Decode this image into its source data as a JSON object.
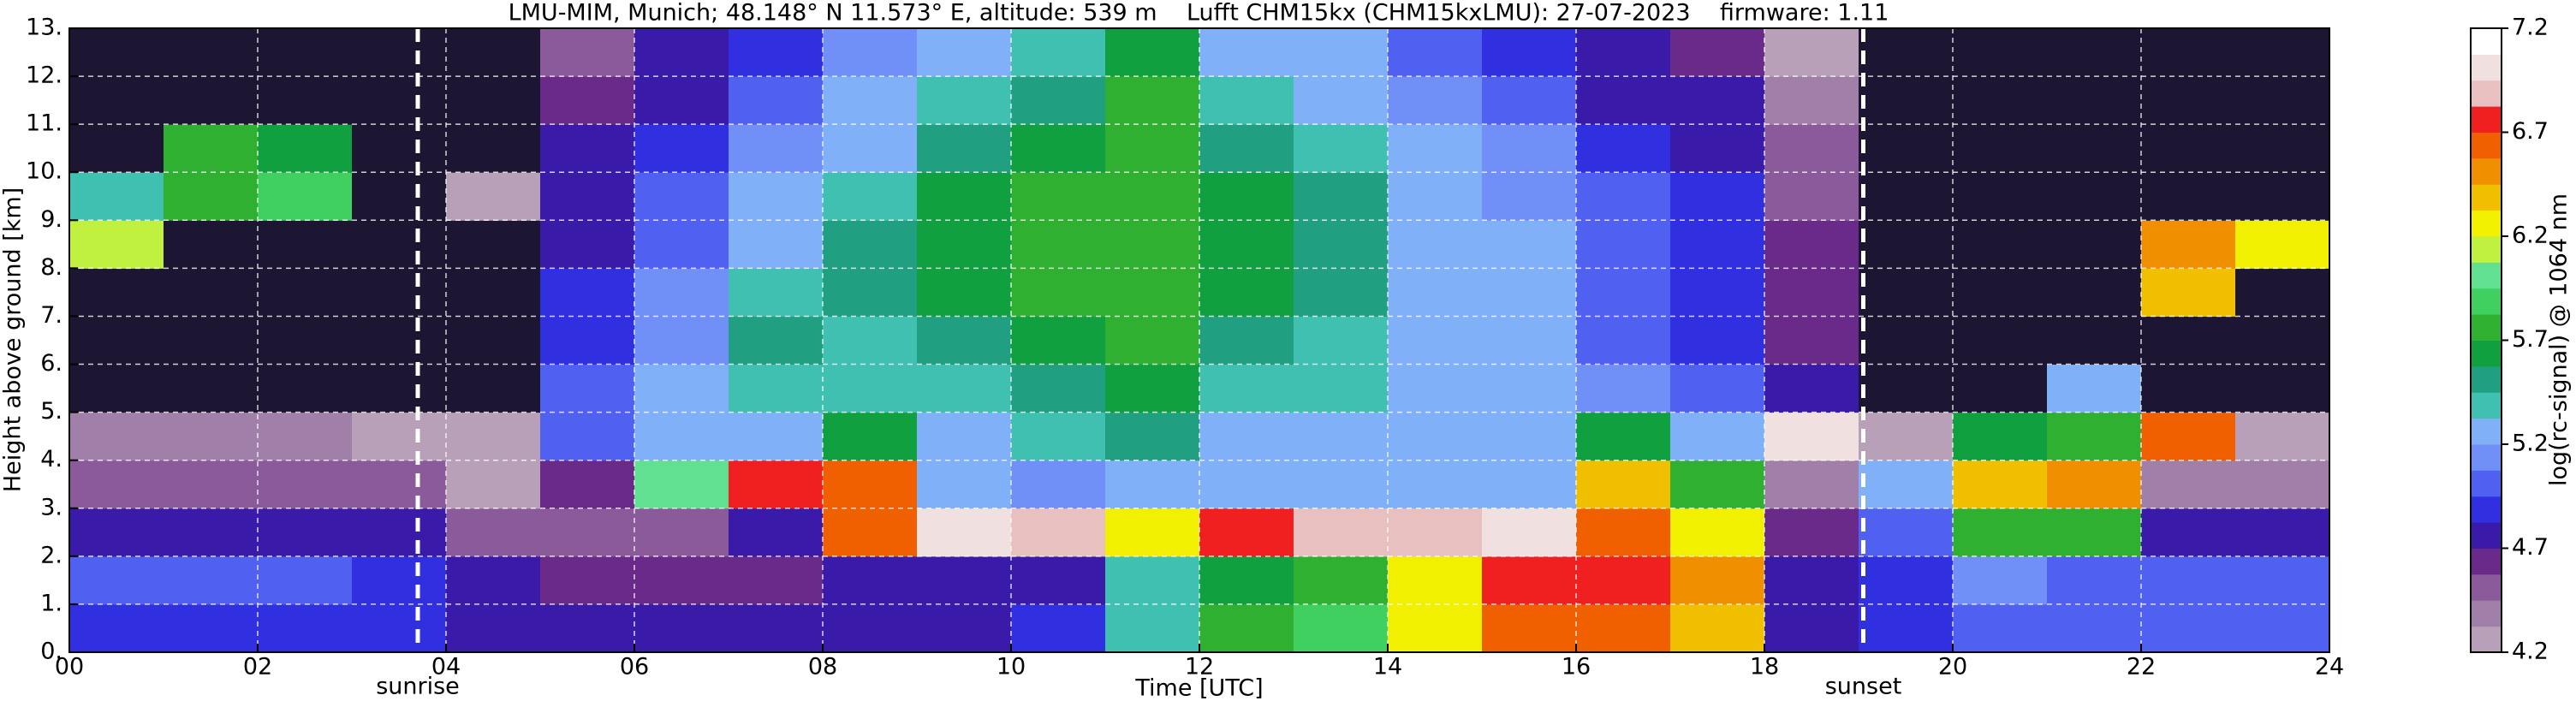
{
  "chart_data": {
    "type": "heatmap",
    "title": "LMU-MIM, Munich; 48.148° N 11.573° E, altitude: 539 m    Lufft CHM15kx (CHM15kxLMU): 27-07-2023    firmware: 1.11",
    "x_label": "Time [UTC]",
    "y_label": "Height above ground [km]",
    "xlim": [
      0,
      24
    ],
    "ylim": [
      0,
      13
    ],
    "xticks": [
      {
        "value": 0,
        "label": "00"
      },
      {
        "value": 2,
        "label": "02"
      },
      {
        "value": 4,
        "label": "04"
      },
      {
        "value": 6,
        "label": "06"
      },
      {
        "value": 8,
        "label": "08"
      },
      {
        "value": 10,
        "label": "10"
      },
      {
        "value": 12,
        "label": "12"
      },
      {
        "value": 14,
        "label": "14"
      },
      {
        "value": 16,
        "label": "16"
      },
      {
        "value": 18,
        "label": "18"
      },
      {
        "value": 20,
        "label": "20"
      },
      {
        "value": 22,
        "label": "22"
      },
      {
        "value": 24,
        "label": "24"
      }
    ],
    "yticks": [
      {
        "value": 0,
        "label": "0."
      },
      {
        "value": 1,
        "label": "1."
      },
      {
        "value": 2,
        "label": "2."
      },
      {
        "value": 3,
        "label": "3."
      },
      {
        "value": 4,
        "label": "4."
      },
      {
        "value": 5,
        "label": "5."
      },
      {
        "value": 6,
        "label": "6."
      },
      {
        "value": 7,
        "label": "7."
      },
      {
        "value": 8,
        "label": "8."
      },
      {
        "value": 9,
        "label": "9."
      },
      {
        "value": 10,
        "label": "10."
      },
      {
        "value": 11,
        "label": "11."
      },
      {
        "value": 12,
        "label": "12."
      },
      {
        "value": 13,
        "label": "13."
      }
    ],
    "grid": true,
    "x": [
      0.5,
      1.5,
      2.5,
      3.5,
      4.5,
      5.5,
      6.5,
      7.5,
      8.5,
      9.5,
      10.5,
      11.5,
      12.5,
      13.5,
      14.5,
      15.5,
      16.5,
      17.5,
      18.5,
      19.5,
      20.5,
      21.5,
      22.5,
      23.5
    ],
    "y": [
      0.5,
      1.5,
      2.5,
      3.5,
      4.5,
      5.5,
      6.5,
      7.5,
      8.5,
      9.5,
      10.5,
      11.5,
      12.5
    ],
    "z": [
      [
        4.9,
        4.9,
        4.9,
        4.9,
        4.8,
        4.8,
        4.8,
        4.7,
        4.8,
        4.8,
        4.9,
        5.4,
        5.8,
        5.9,
        6.2,
        6.6,
        6.6,
        6.4,
        4.8,
        4.9,
        5.0,
        5.0,
        5.0,
        5.0
      ],
      [
        5.0,
        5.0,
        5.0,
        4.9,
        4.7,
        4.6,
        4.6,
        4.6,
        4.7,
        4.8,
        4.8,
        5.4,
        5.6,
        5.7,
        6.3,
        6.7,
        6.7,
        6.5,
        4.7,
        4.9,
        5.1,
        5.0,
        5.0,
        5.0
      ],
      [
        4.8,
        4.8,
        4.8,
        4.8,
        4.5,
        4.5,
        4.5,
        4.8,
        6.6,
        7.0,
        6.9,
        6.2,
        6.8,
        6.9,
        6.9,
        7.0,
        6.6,
        6.3,
        4.6,
        5.0,
        5.8,
        5.7,
        4.8,
        4.8
      ],
      [
        4.5,
        4.5,
        4.5,
        4.5,
        4.3,
        4.6,
        6.0,
        6.8,
        6.6,
        5.3,
        5.1,
        5.2,
        5.2,
        5.2,
        5.2,
        5.3,
        6.4,
        5.8,
        4.4,
        5.2,
        6.4,
        6.5,
        4.4,
        4.4
      ],
      [
        4.4,
        4.4,
        4.4,
        4.3,
        4.2,
        5.0,
        5.2,
        5.3,
        5.6,
        5.3,
        5.4,
        5.5,
        5.3,
        5.3,
        5.3,
        5.2,
        5.6,
        5.3,
        7.0,
        4.3,
        5.6,
        5.8,
        6.6,
        4.2
      ],
      [
        4.0,
        4.0,
        4.0,
        4.0,
        4.0,
        5.0,
        5.2,
        5.4,
        5.4,
        5.4,
        5.5,
        5.6,
        5.4,
        5.4,
        5.3,
        5.2,
        5.1,
        5.0,
        4.8,
        4.0,
        4.0,
        5.2,
        4.0,
        4.0
      ],
      [
        4.0,
        4.0,
        4.0,
        4.0,
        4.0,
        4.9,
        5.1,
        5.5,
        5.4,
        5.5,
        5.6,
        5.7,
        5.5,
        5.4,
        5.3,
        5.2,
        5.0,
        4.9,
        4.6,
        4.0,
        4.0,
        4.0,
        4.0,
        4.0
      ],
      [
        4.0,
        4.0,
        4.0,
        4.0,
        4.0,
        4.9,
        5.1,
        5.4,
        5.5,
        5.6,
        5.7,
        5.8,
        5.6,
        5.5,
        5.3,
        5.2,
        5.0,
        4.9,
        4.6,
        4.0,
        4.0,
        4.0,
        6.4,
        4.0
      ],
      [
        6.1,
        4.0,
        4.0,
        4.0,
        4.0,
        4.8,
        5.0,
        5.3,
        5.5,
        5.6,
        5.7,
        5.8,
        5.6,
        5.5,
        5.3,
        5.2,
        5.0,
        4.9,
        4.6,
        4.0,
        4.0,
        4.0,
        6.5,
        6.3
      ],
      [
        5.4,
        5.7,
        5.9,
        4.0,
        4.2,
        4.8,
        5.0,
        5.2,
        5.4,
        5.6,
        5.7,
        5.8,
        5.6,
        5.5,
        5.3,
        5.1,
        5.0,
        4.9,
        4.5,
        4.0,
        4.0,
        4.0,
        4.0,
        4.0
      ],
      [
        4.0,
        5.8,
        5.6,
        4.0,
        4.0,
        4.7,
        4.9,
        5.1,
        5.3,
        5.5,
        5.6,
        5.8,
        5.5,
        5.4,
        5.2,
        5.1,
        4.9,
        4.8,
        4.5,
        4.0,
        4.0,
        4.0,
        4.0,
        4.0
      ],
      [
        4.0,
        4.0,
        4.0,
        4.0,
        4.0,
        4.6,
        4.8,
        5.0,
        5.2,
        5.4,
        5.5,
        5.7,
        5.4,
        5.3,
        5.1,
        5.0,
        4.8,
        4.7,
        4.4,
        4.0,
        4.0,
        4.0,
        4.0,
        4.0
      ],
      [
        4.0,
        4.0,
        4.0,
        4.0,
        4.0,
        4.5,
        4.7,
        4.9,
        5.1,
        5.3,
        5.4,
        5.6,
        5.3,
        5.2,
        5.0,
        4.9,
        4.7,
        4.6,
        4.3,
        4.0,
        4.0,
        4.0,
        4.0,
        4.0
      ]
    ],
    "under_color": "#1c1632",
    "colorbar": {
      "label": "log(rc-signal) @ 1064 nm",
      "clim": [
        4.2,
        7.2
      ],
      "ticks": [
        4.2,
        4.7,
        5.2,
        5.7,
        6.2,
        6.7,
        7.2
      ],
      "colors": [
        "#b8a0b8",
        "#a080a8",
        "#8a5a9a",
        "#6a2a8a",
        "#3a1aa8",
        "#3030e0",
        "#5060f0",
        "#7090f8",
        "#80b0f8",
        "#40c0b0",
        "#20a080",
        "#10a040",
        "#30b030",
        "#40d060",
        "#60e090",
        "#c0f040",
        "#f0f000",
        "#f0c000",
        "#f09000",
        "#f06000",
        "#f02020",
        "#e8c0c0",
        "#f0e0e0",
        "#ffffff"
      ]
    },
    "annotations": [
      {
        "text": "sunrise",
        "x": 3.7
      },
      {
        "text": "sunset",
        "x": 19.05
      }
    ]
  }
}
